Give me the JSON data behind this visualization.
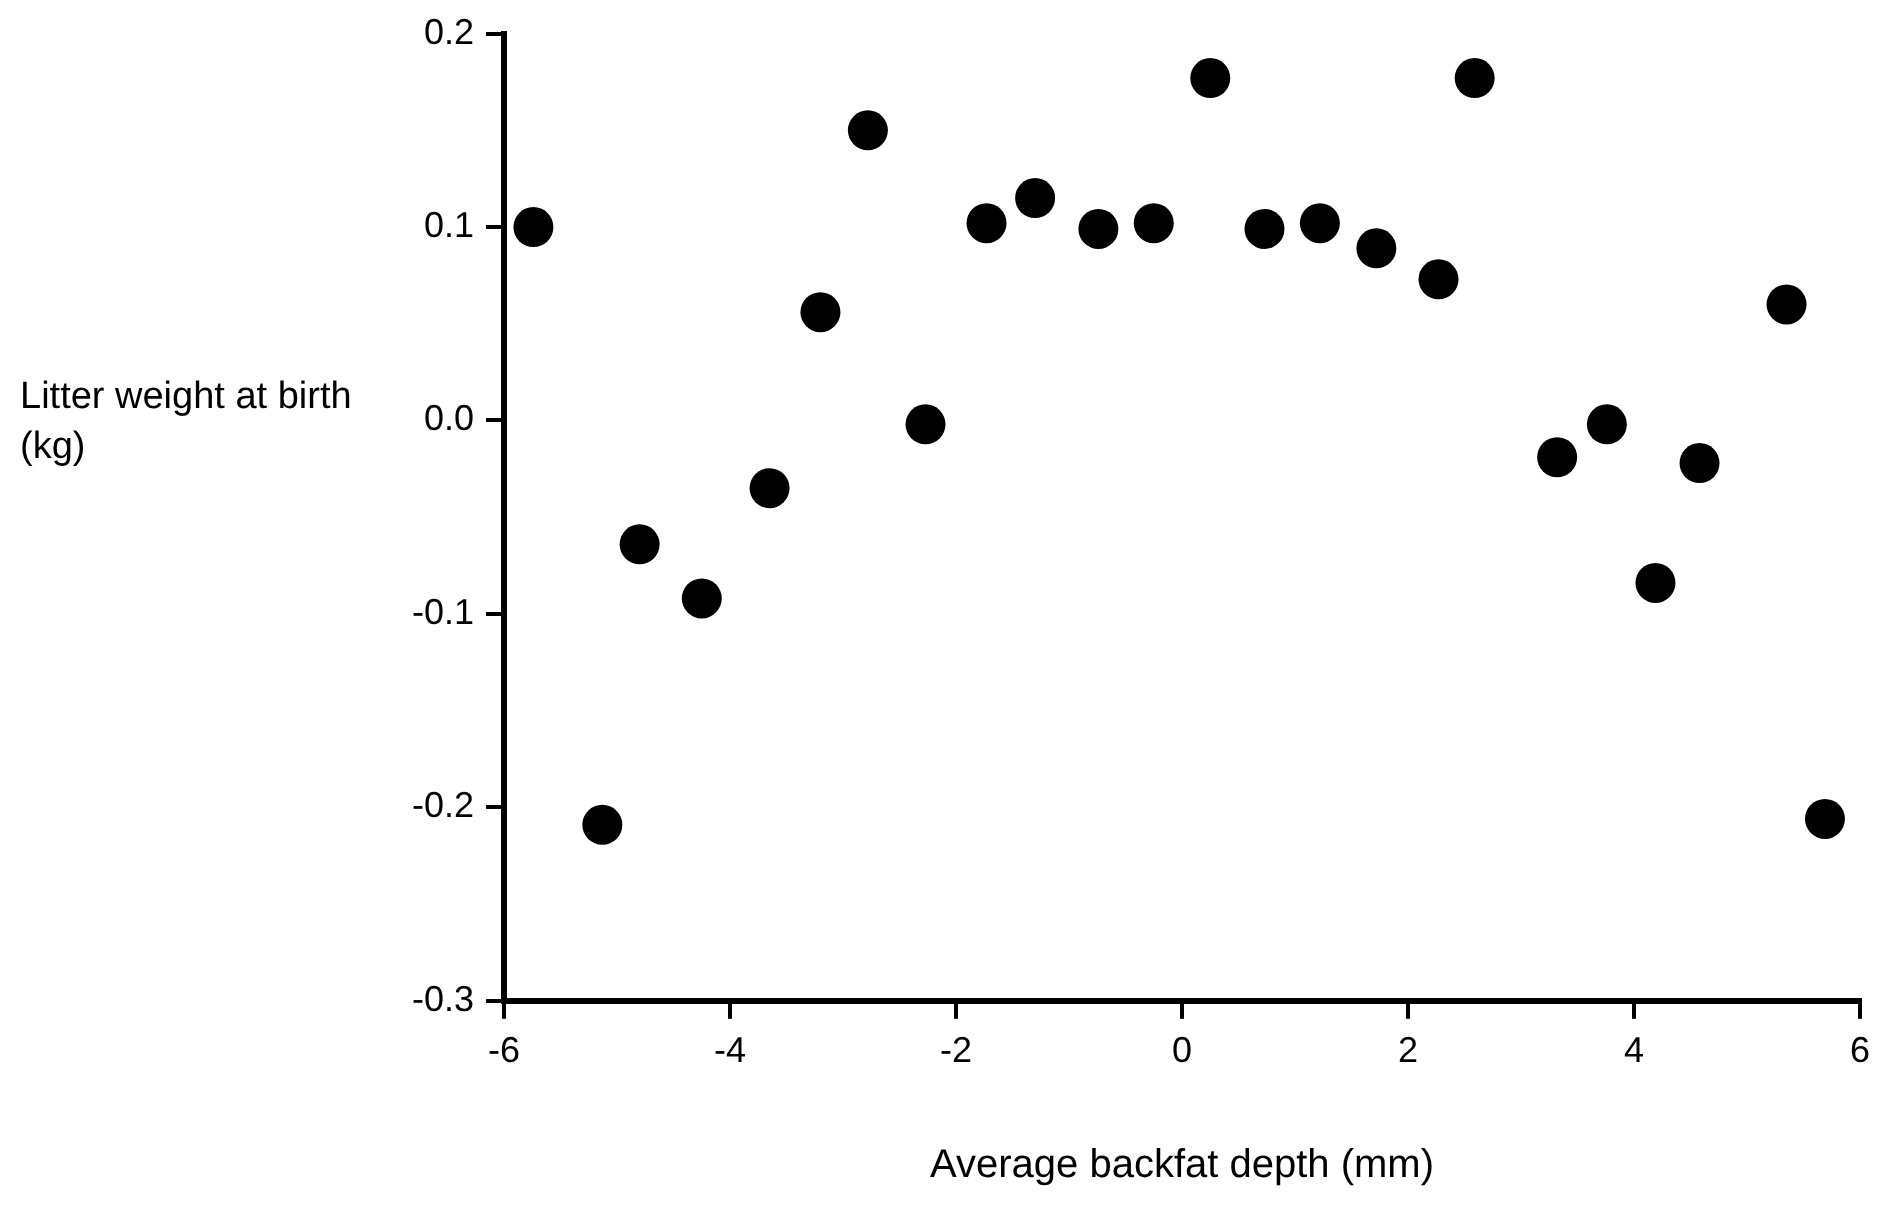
{
  "chart_data": {
    "type": "scatter",
    "xlabel": "Average backfat depth (mm)",
    "ylabel": "Litter weight at birth (kg)",
    "x": [
      -5.74,
      -5.13,
      -4.8,
      -4.25,
      -3.65,
      -3.2,
      -2.78,
      -2.27,
      -1.73,
      -1.3,
      -0.74,
      -0.25,
      0.25,
      0.73,
      1.22,
      1.72,
      2.27,
      2.59,
      3.32,
      3.76,
      4.19,
      4.58,
      5.35,
      5.69
    ],
    "series": [
      {
        "color": "#000000",
        "values": [
          0.1,
          -0.209,
          -0.064,
          -0.092,
          -0.035,
          0.056,
          0.15,
          -0.002,
          0.102,
          0.115,
          0.099,
          0.102,
          0.177,
          0.099,
          0.102,
          0.089,
          0.073,
          0.177,
          -0.019,
          -0.002,
          -0.084,
          -0.022,
          0.06,
          -0.206
        ]
      }
    ],
    "xlim": [
      -6,
      6
    ],
    "xticks": [
      -6,
      -4,
      -2,
      0,
      2,
      4,
      6
    ],
    "ylim": [
      -0.3,
      0.2
    ],
    "yticks": [
      -0.3,
      -0.2,
      -0.1,
      {
        "value": 0,
        "label": "0.0"
      },
      0.1,
      0.2
    ],
    "grid": false,
    "legend": false,
    "marker": "circle"
  }
}
